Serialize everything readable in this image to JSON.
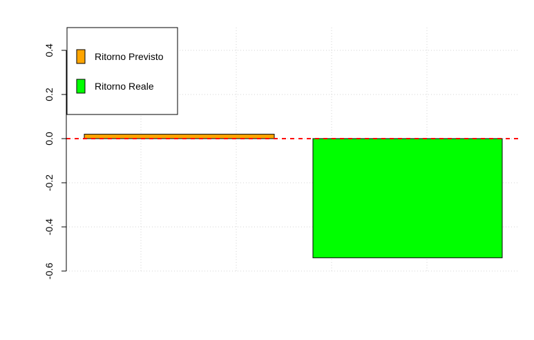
{
  "chart_data": {
    "type": "bar",
    "title": "",
    "xlabel": "",
    "ylabel": "",
    "ylim": [
      -0.6,
      0.5
    ],
    "yticks": [
      "-0.6",
      "-0.4",
      "-0.2",
      "0.0",
      "0.2",
      "0.4"
    ],
    "grid": true,
    "reference_line": {
      "y": 0,
      "color": "#ff0000",
      "style": "dashed"
    },
    "legend_position": "top-left",
    "series": [
      {
        "name": "Ritorno Previsto",
        "value": 0.02,
        "color": "#ffa500"
      },
      {
        "name": "Ritorno Reale",
        "value": -0.54,
        "color": "#00ff00"
      }
    ]
  }
}
